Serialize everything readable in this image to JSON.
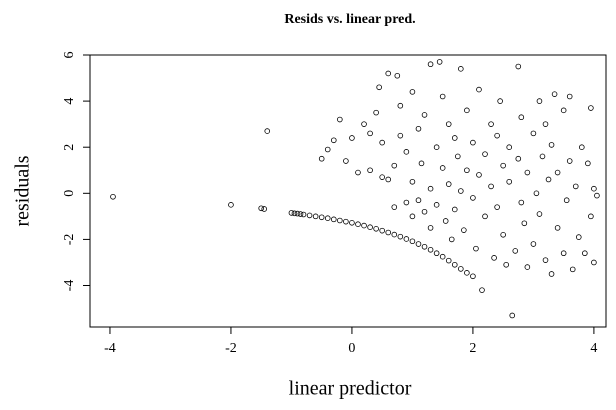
{
  "chart_data": {
    "type": "scatter",
    "title": "Resids vs. linear pred.",
    "x_label": "linear predictor",
    "y_label": "residuals",
    "xlim": [
      -4.33,
      4.2
    ],
    "ylim": [
      -5.8,
      6.0
    ],
    "xticks": [
      -4,
      -2,
      0,
      2,
      4
    ],
    "yticks": [
      -4,
      -2,
      0,
      2,
      4,
      6
    ],
    "color": "#000000",
    "x": [
      -1.5,
      -1.45,
      -1.0,
      -0.95,
      -0.9,
      -0.85,
      -0.8,
      -0.7,
      -0.6,
      -0.5,
      -0.4,
      -0.3,
      -0.2,
      -0.1,
      0,
      0.1,
      0.2,
      0.3,
      0.4,
      0.5,
      0.6,
      0.7,
      0.8,
      0.9,
      1.0,
      1.1,
      1.2,
      1.3,
      1.4,
      1.5,
      1.6,
      1.7,
      1.8,
      1.9,
      2.0,
      -3.95,
      -2.0,
      -1.4,
      -0.5,
      -0.4,
      -0.3,
      -0.2,
      -0.1,
      0.0,
      0.1,
      0.2,
      0.3,
      0.3,
      0.4,
      0.45,
      0.5,
      0.5,
      0.6,
      0.6,
      0.7,
      0.7,
      0.75,
      0.8,
      0.8,
      0.9,
      0.9,
      1.0,
      1.0,
      1.0,
      1.1,
      1.1,
      1.15,
      1.2,
      1.2,
      1.3,
      1.3,
      1.3,
      1.4,
      1.4,
      1.45,
      1.5,
      1.5,
      1.55,
      1.6,
      1.6,
      1.65,
      1.7,
      1.7,
      1.75,
      1.8,
      1.8,
      1.85,
      1.9,
      1.9,
      2.0,
      2.0,
      2.05,
      2.1,
      2.1,
      2.15,
      2.2,
      2.2,
      2.3,
      2.3,
      2.35,
      2.4,
      2.4,
      2.45,
      2.5,
      2.5,
      2.55,
      2.6,
      2.6,
      2.65,
      2.7,
      2.75,
      2.75,
      2.8,
      2.8,
      2.85,
      2.9,
      2.9,
      3.0,
      3.0,
      3.05,
      3.1,
      3.1,
      3.15,
      3.2,
      3.2,
      3.25,
      3.3,
      3.3,
      3.35,
      3.4,
      3.4,
      3.5,
      3.5,
      3.55,
      3.6,
      3.6,
      3.65,
      3.7,
      3.75,
      3.8,
      3.85,
      3.9,
      3.95,
      3.95,
      4.0,
      4.0,
      4.05
    ],
    "values": [
      -0.65,
      -0.68,
      -0.85,
      -0.87,
      -0.88,
      -0.9,
      -0.92,
      -0.96,
      -1.0,
      -1.04,
      -1.08,
      -1.13,
      -1.18,
      -1.23,
      -1.28,
      -1.34,
      -1.4,
      -1.47,
      -1.54,
      -1.62,
      -1.7,
      -1.79,
      -1.88,
      -1.98,
      -2.08,
      -2.2,
      -2.32,
      -2.45,
      -2.6,
      -2.75,
      -2.92,
      -3.1,
      -3.28,
      -3.45,
      -3.6,
      -0.15,
      -0.5,
      2.7,
      1.5,
      1.9,
      2.3,
      3.2,
      1.4,
      2.4,
      0.9,
      3.0,
      2.6,
      1.0,
      3.5,
      4.6,
      0.7,
      2.2,
      5.2,
      0.6,
      1.2,
      -0.6,
      5.1,
      2.5,
      3.8,
      -0.4,
      1.8,
      0.5,
      4.4,
      -1.0,
      2.8,
      -0.3,
      1.3,
      -0.8,
      3.4,
      5.6,
      0.2,
      -1.5,
      2.0,
      -0.5,
      5.7,
      1.1,
      4.2,
      -1.2,
      0.4,
      3.0,
      -2.0,
      2.4,
      -0.7,
      1.6,
      5.4,
      0.1,
      -1.6,
      3.6,
      1.0,
      -0.2,
      2.2,
      -2.4,
      4.5,
      0.8,
      -4.2,
      1.7,
      -1.0,
      3.0,
      0.3,
      -2.8,
      2.5,
      -0.6,
      4.0,
      1.2,
      -1.8,
      -3.1,
      0.5,
      2.0,
      -5.3,
      -2.5,
      5.5,
      1.5,
      -0.4,
      3.3,
      -1.3,
      0.9,
      -3.2,
      2.6,
      -2.2,
      0.0,
      4.0,
      -0.9,
      1.6,
      -2.9,
      3.0,
      0.6,
      -3.5,
      2.1,
      4.3,
      -1.5,
      0.9,
      -2.6,
      3.6,
      -0.3,
      1.4,
      4.2,
      -3.3,
      0.3,
      -1.9,
      2.0,
      -2.6,
      1.3,
      3.7,
      -1.0,
      -3.0,
      0.2,
      -0.1
    ]
  }
}
